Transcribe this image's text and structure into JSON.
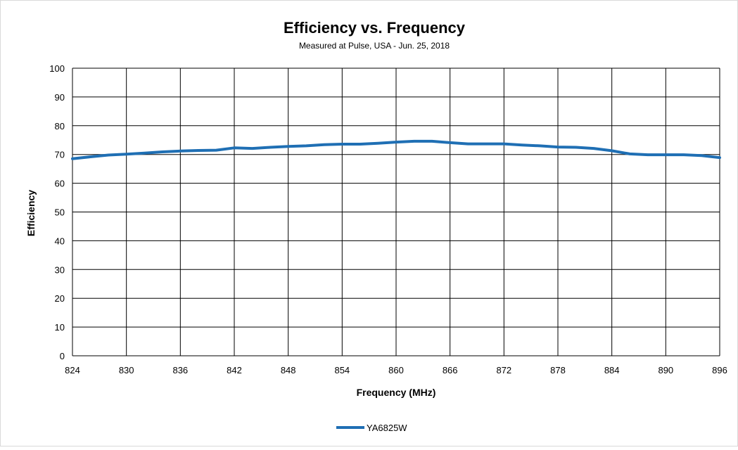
{
  "chart_data": {
    "type": "line",
    "title": "Efficiency vs. Frequency",
    "subtitle": "Measured at Pulse, USA - Jun. 25, 2018",
    "xlabel": "Frequency (MHz)",
    "ylabel": "Efficiency",
    "xlim": [
      824,
      896
    ],
    "ylim": [
      0,
      100
    ],
    "xticks": [
      824,
      830,
      836,
      842,
      848,
      854,
      860,
      866,
      872,
      878,
      884,
      890,
      896
    ],
    "yticks": [
      0,
      10,
      20,
      30,
      40,
      50,
      60,
      70,
      80,
      90,
      100
    ],
    "grid": true,
    "legend_position": "bottom",
    "colors": {
      "series": "#1f6fb4",
      "grid": "#000000",
      "frame": "#d9d9d9"
    },
    "series": [
      {
        "name": "YA6825W",
        "x": [
          824,
          826,
          828,
          830,
          832,
          834,
          836,
          838,
          840,
          842,
          844,
          846,
          848,
          850,
          852,
          854,
          856,
          858,
          860,
          862,
          864,
          866,
          868,
          870,
          872,
          874,
          876,
          878,
          880,
          882,
          884,
          886,
          888,
          890,
          892,
          894,
          896
        ],
        "y": [
          68.5,
          69.2,
          69.8,
          70.1,
          70.5,
          70.9,
          71.2,
          71.4,
          71.5,
          72.3,
          72.1,
          72.5,
          72.8,
          73.0,
          73.4,
          73.6,
          73.6,
          73.9,
          74.3,
          74.6,
          74.6,
          74.1,
          73.7,
          73.7,
          73.7,
          73.3,
          73.0,
          72.6,
          72.5,
          72.1,
          71.3,
          70.2,
          69.9,
          69.9,
          69.9,
          69.6,
          68.9
        ]
      }
    ]
  }
}
